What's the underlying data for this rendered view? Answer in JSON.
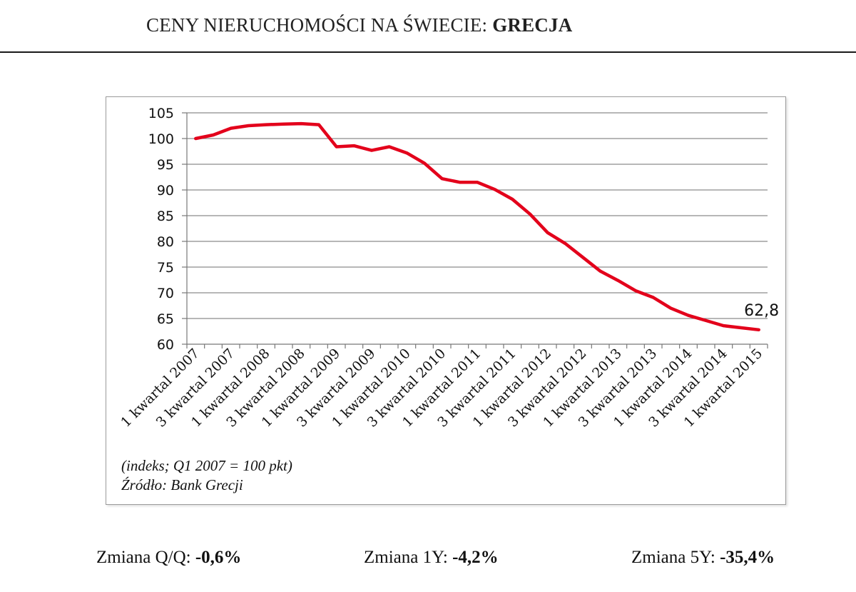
{
  "header": {
    "title_prefix": "CENY NIERUCHOMOŚCI NA ŚWIECIE: ",
    "title_country": "GRECJA"
  },
  "chart_data": {
    "type": "line",
    "categories": [
      "1 kwartal 2007",
      "",
      "3 kwartal 2007",
      "",
      "1 kwartal 2008",
      "",
      "3 kwartal 2008",
      "",
      "1 kwartal 2009",
      "",
      "3 kwartal 2009",
      "",
      "1 kwartal 2010",
      "",
      "3 kwartal 2010",
      "",
      "1 kwartal 2011",
      "",
      "3 kwartal 2011",
      "",
      "1 kwartal 2012",
      "",
      "3 kwartal 2012",
      "",
      "1 kwartal 2013",
      "",
      "3 kwartal 2013",
      "",
      "1 kwartal 2014",
      "",
      "3 kwartal 2014",
      "",
      "1 kwartal 2015"
    ],
    "series": [
      {
        "values": [
          100,
          100.7,
          102,
          102.5,
          102.7,
          102.8,
          102.9,
          102.7,
          98.4,
          98.6,
          97.7,
          98.4,
          97.2,
          95.2,
          92.2,
          91.5,
          91.5,
          90.1,
          88.2,
          85.3,
          81.7,
          79.6,
          76.9,
          74.2,
          72.4,
          70.4,
          69.1,
          67,
          65.6,
          64.6,
          63.6,
          63.2,
          62.8
        ],
        "color": "#e3001b"
      }
    ],
    "ylim": [
      60,
      105
    ],
    "yticks": [
      60,
      65,
      70,
      75,
      80,
      85,
      90,
      95,
      100,
      105
    ],
    "grid": true,
    "last_label": "62,8"
  },
  "notes": {
    "index_note": "(indeks; Q1 2007 = 100 pkt)",
    "source": "Źródło: Bank Grecji"
  },
  "stats": [
    {
      "label": "Zmiana Q/Q: ",
      "value": "-0,6%"
    },
    {
      "label": "Zmiana 1Y: ",
      "value": "-4,2%"
    },
    {
      "label": "Zmiana 5Y: ",
      "value": "-35,4%"
    }
  ]
}
